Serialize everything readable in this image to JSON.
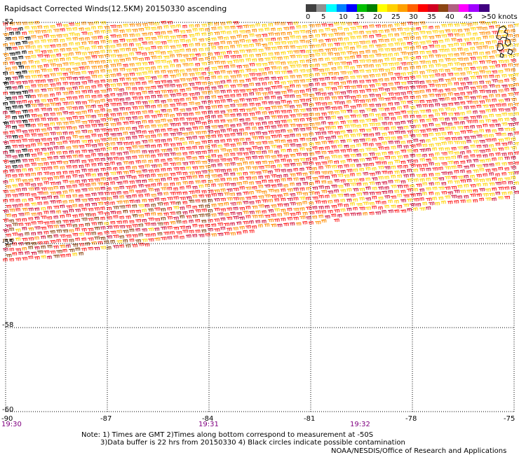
{
  "title": "Rapidsact Corrected Winds(12.5KM) 20150330 ascending",
  "legend": {
    "labels": [
      "0",
      "5",
      "10",
      "15",
      "20",
      "25",
      "30",
      "35",
      "40",
      "45",
      ">50 knots"
    ],
    "colors": [
      "#404040",
      "#909090",
      "#00ffff",
      "#0080ff",
      "#0000ff",
      "#00c000",
      "#008000",
      "#ffff00",
      "#ffd000",
      "#ffa000",
      "#ff6000",
      "#ff0000",
      "#d00020",
      "#8b4513",
      "#b06080",
      "#ff00ff",
      "#a000ff",
      "#400080"
    ]
  },
  "axes": {
    "lat_labels": [
      "-52",
      "-55",
      "-58",
      "-60"
    ],
    "lon_labels": [
      "-90",
      "-87",
      "-84",
      "-81",
      "-78",
      "-75"
    ]
  },
  "times": [
    "19:30",
    "19:31",
    "19:32"
  ],
  "notes": {
    "line1": "Note: 1) Times are GMT 2)Times along bottom correspond to measurement at -50S",
    "line2": "3)Data buffer is 22 hrs from 20150330 4) Black circles indicate possible contamination",
    "credit": "NOAA/NESDIS/Office of Research and Applications"
  },
  "wind_colors": {
    "yellow": "#ffd200",
    "orange": "#ff8c00",
    "red": "#ff2020",
    "crimson": "#d0103a",
    "brown": "#8b4513",
    "black": "#000000",
    "magenta": "#ff00ff"
  }
}
